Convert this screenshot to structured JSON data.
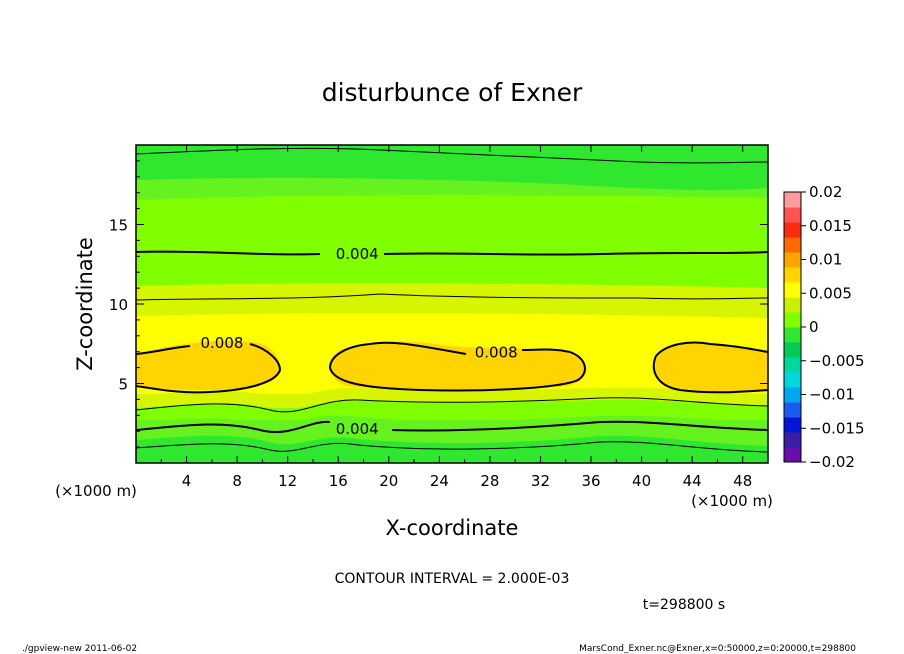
{
  "chart_data": {
    "type": "contour",
    "title": "disturbunce of Exner",
    "xlabel": "X-coordinate",
    "ylabel": "Z-coordinate",
    "x_unit": "(×1000 m)",
    "y_unit": "(×1000 m)",
    "xlim": [
      0,
      50
    ],
    "ylim": [
      0,
      20
    ],
    "x_ticks": [
      4,
      8,
      12,
      16,
      20,
      24,
      28,
      32,
      36,
      40,
      44,
      48
    ],
    "y_ticks": [
      5,
      10,
      15
    ],
    "contour_interval_text": "CONTOUR INTERVAL = 2.000E-03",
    "time_text": "t=298800 s",
    "contour_labels": [
      {
        "text": "0.004",
        "x": 17.5,
        "z": 13.2
      },
      {
        "text": "0.008",
        "x": 6.8,
        "z": 7.6
      },
      {
        "text": "0.008",
        "x": 28.5,
        "z": 7.0
      },
      {
        "text": "0.004",
        "x": 17.5,
        "z": 2.2
      }
    ],
    "colorbar": {
      "levels": [
        0.02,
        0.015,
        0.01,
        0.005,
        0,
        -0.005,
        -0.01,
        -0.015,
        -0.02
      ],
      "labels": [
        "0.02",
        "0.015",
        "0.01",
        "0.005",
        "0",
        "−0.005",
        "−0.01",
        "−0.015",
        "−0.02"
      ],
      "colors": [
        "#6a0dad",
        "#3a1ea8",
        "#0015d8",
        "#1d5bf0",
        "#00a8f0",
        "#00d8e0",
        "#00d7a0",
        "#00cc55",
        "#2ee72e",
        "#80ff00",
        "#c8f000",
        "#ffff00",
        "#ffd400",
        "#ffa500",
        "#ff6a00",
        "#ff2a10",
        "#ff5550",
        "#ff9a9a"
      ]
    },
    "bands": [
      {
        "range": [
          0.0,
          0.002
        ],
        "color": "#2ee72e"
      },
      {
        "range": [
          0.002,
          0.004
        ],
        "color": "#66f21e"
      },
      {
        "range": [
          0.004,
          0.006
        ],
        "color": "#80ff00"
      },
      {
        "range": [
          0.006,
          0.008
        ],
        "color": "#d6f500"
      },
      {
        "range": [
          0.008,
          0.01
        ],
        "color": "#ffff00"
      },
      {
        "range": [
          0.01,
          0.012
        ],
        "color": "#ffd400"
      }
    ]
  },
  "footer": {
    "left": "./gpview-new  2011-06-02",
    "right": "MarsCond_Exner.nc@Exner,x=0:50000,z=0:20000,t=298800"
  }
}
